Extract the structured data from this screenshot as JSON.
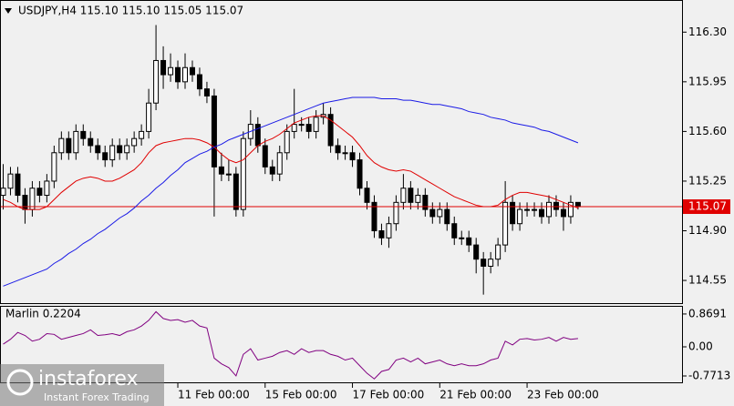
{
  "chart_data": [
    {
      "type": "candlestick",
      "title": "USDJPY,H4  115.10 115.10 115.05 115.07",
      "categories": [
        null,
        null,
        null,
        null,
        null,
        null,
        null,
        null,
        null,
        null,
        null,
        null,
        null,
        null,
        null,
        null,
        null,
        null,
        null,
        null,
        null,
        null,
        null,
        null,
        "11 Feb 00:00",
        null,
        null,
        null,
        null,
        null,
        null,
        null,
        null,
        null,
        null,
        null,
        "15 Feb 00:00",
        null,
        null,
        null,
        null,
        null,
        null,
        null,
        null,
        null,
        null,
        null,
        "17 Feb 00:00",
        null,
        null,
        null,
        null,
        null,
        null,
        null,
        null,
        null,
        null,
        null,
        "21 Feb 00:00",
        null,
        null,
        null,
        null,
        null,
        null,
        null,
        null,
        null,
        null,
        null,
        "23 Feb 00:00",
        null,
        null,
        null,
        null,
        null,
        null,
        null
      ],
      "open": [
        115.15,
        115.2,
        115.3,
        115.15,
        115.05,
        115.2,
        115.15,
        115.25,
        115.45,
        115.55,
        115.45,
        115.6,
        115.55,
        115.5,
        115.45,
        115.4,
        115.5,
        115.45,
        115.5,
        115.55,
        115.6,
        115.8,
        116.1,
        116.0,
        116.05,
        115.95,
        116.05,
        116.0,
        115.9,
        115.85,
        115.35,
        115.3,
        115.3,
        115.05,
        115.55,
        115.65,
        115.5,
        115.35,
        115.3,
        115.45,
        115.6,
        115.65,
        115.65,
        115.6,
        115.7,
        115.72,
        115.5,
        115.45,
        115.45,
        115.4,
        115.2,
        115.1,
        114.9,
        114.85,
        114.95,
        115.1,
        115.2,
        115.1,
        115.15,
        115.05,
        115.0,
        115.05,
        114.95,
        114.85,
        114.85,
        114.8,
        114.7,
        114.65,
        114.7,
        114.8,
        115.1,
        114.95,
        115.05,
        115.05,
        115.05,
        115.0,
        115.1,
        115.05,
        115.0,
        115.1
      ],
      "high": [
        115.37,
        115.35,
        115.35,
        115.2,
        115.25,
        115.25,
        115.3,
        115.5,
        115.6,
        115.6,
        115.65,
        115.65,
        115.6,
        115.55,
        115.5,
        115.55,
        115.55,
        115.55,
        115.6,
        115.65,
        115.9,
        116.35,
        116.2,
        116.15,
        116.1,
        116.15,
        116.1,
        116.05,
        115.95,
        115.9,
        115.45,
        115.4,
        115.35,
        115.6,
        115.75,
        115.7,
        115.55,
        115.4,
        115.5,
        115.65,
        115.9,
        115.7,
        115.7,
        115.75,
        115.8,
        115.77,
        115.55,
        115.5,
        115.5,
        115.45,
        115.25,
        115.15,
        114.95,
        115.0,
        115.15,
        115.3,
        115.25,
        115.2,
        115.2,
        115.1,
        115.1,
        115.1,
        115.0,
        114.9,
        114.9,
        114.85,
        114.75,
        114.75,
        114.85,
        115.25,
        115.15,
        115.1,
        115.1,
        115.1,
        115.1,
        115.15,
        115.15,
        115.1,
        115.15,
        115.1
      ],
      "low": [
        115.05,
        115.15,
        115.1,
        114.95,
        115.0,
        115.1,
        115.1,
        115.2,
        115.4,
        115.4,
        115.4,
        115.5,
        115.45,
        115.4,
        115.35,
        115.35,
        115.4,
        115.4,
        115.45,
        115.5,
        115.55,
        115.75,
        115.9,
        115.95,
        115.9,
        115.9,
        115.95,
        115.85,
        115.8,
        115.0,
        115.25,
        115.25,
        115.0,
        115.0,
        115.5,
        115.45,
        115.3,
        115.25,
        115.25,
        115.4,
        115.55,
        115.6,
        115.55,
        115.55,
        115.65,
        115.45,
        115.4,
        115.4,
        115.35,
        115.15,
        115.05,
        114.85,
        114.8,
        114.78,
        114.9,
        115.05,
        115.05,
        115.05,
        115.0,
        114.95,
        114.95,
        114.9,
        114.8,
        114.8,
        114.75,
        114.6,
        114.45,
        114.6,
        114.65,
        114.75,
        114.9,
        114.9,
        115.0,
        115.0,
        114.95,
        114.95,
        115.0,
        114.9,
        114.95,
        115.05
      ],
      "close": [
        115.2,
        115.3,
        115.15,
        115.05,
        115.2,
        115.15,
        115.25,
        115.45,
        115.55,
        115.45,
        115.6,
        115.55,
        115.5,
        115.45,
        115.4,
        115.5,
        115.45,
        115.5,
        115.55,
        115.6,
        115.8,
        116.1,
        116.0,
        116.05,
        115.95,
        116.05,
        116.0,
        115.9,
        115.85,
        115.35,
        115.3,
        115.3,
        115.05,
        115.55,
        115.65,
        115.5,
        115.35,
        115.3,
        115.45,
        115.6,
        115.65,
        115.65,
        115.6,
        115.7,
        115.72,
        115.5,
        115.45,
        115.45,
        115.4,
        115.2,
        115.1,
        114.9,
        114.85,
        114.95,
        115.1,
        115.2,
        115.1,
        115.15,
        115.05,
        115.0,
        115.05,
        114.95,
        114.85,
        114.85,
        114.8,
        114.7,
        114.65,
        114.7,
        114.8,
        115.1,
        114.95,
        115.05,
        115.05,
        115.05,
        115.0,
        115.1,
        115.05,
        115.0,
        115.1,
        115.07
      ],
      "series": [
        {
          "color": "#e00000",
          "values": [
            115.12,
            115.1,
            115.07,
            115.05,
            115.05,
            115.05,
            115.07,
            115.12,
            115.17,
            115.21,
            115.25,
            115.27,
            115.28,
            115.27,
            115.25,
            115.25,
            115.27,
            115.3,
            115.33,
            115.38,
            115.45,
            115.5,
            115.52,
            115.53,
            115.54,
            115.55,
            115.55,
            115.54,
            115.52,
            115.49,
            115.44,
            115.4,
            115.38,
            115.4,
            115.45,
            115.5,
            115.53,
            115.55,
            115.58,
            115.62,
            115.66,
            115.68,
            115.7,
            115.71,
            115.71,
            115.68,
            115.64,
            115.6,
            115.56,
            115.5,
            115.43,
            115.38,
            115.35,
            115.33,
            115.32,
            115.33,
            115.32,
            115.29,
            115.26,
            115.23,
            115.2,
            115.17,
            115.14,
            115.12,
            115.1,
            115.08,
            115.07,
            115.07,
            115.08,
            115.12,
            115.15,
            115.17,
            115.17,
            115.16,
            115.15,
            115.14,
            115.12,
            115.1,
            115.08,
            115.06
          ]
        },
        {
          "color": "#1a1ae6",
          "values": [
            114.51,
            114.53,
            114.55,
            114.57,
            114.59,
            114.61,
            114.63,
            114.67,
            114.7,
            114.74,
            114.77,
            114.81,
            114.84,
            114.88,
            114.91,
            114.95,
            114.99,
            115.02,
            115.06,
            115.11,
            115.15,
            115.2,
            115.24,
            115.29,
            115.33,
            115.38,
            115.41,
            115.44,
            115.46,
            115.49,
            115.51,
            115.54,
            115.56,
            115.58,
            115.6,
            115.62,
            115.64,
            115.66,
            115.68,
            115.7,
            115.72,
            115.74,
            115.76,
            115.78,
            115.8,
            115.81,
            115.82,
            115.83,
            115.84,
            115.84,
            115.84,
            115.84,
            115.83,
            115.83,
            115.83,
            115.82,
            115.82,
            115.81,
            115.8,
            115.79,
            115.79,
            115.78,
            115.77,
            115.76,
            115.74,
            115.73,
            115.72,
            115.7,
            115.69,
            115.68,
            115.66,
            115.65,
            115.64,
            115.63,
            115.61,
            115.6,
            115.58,
            115.56,
            115.54,
            115.52
          ]
        }
      ],
      "last_price_color": "#e00000",
      "ylim": [
        114.39,
        116.52
      ],
      "yticks": [
        {
          "value": 116.3,
          "label": "116.30"
        },
        115.95,
        {
          "value": 115.6,
          "label": "115.60"
        },
        115.25,
        {
          "value": 114.9,
          "label": "114.90"
        },
        114.55
      ]
    },
    {
      "type": "line",
      "title": "Marlin 0.2204",
      "series": [
        {
          "color": "#800080",
          "values": [
            0.07,
            0.2,
            0.38,
            0.3,
            0.15,
            0.2,
            0.35,
            0.33,
            0.2,
            0.25,
            0.3,
            0.35,
            0.45,
            0.3,
            0.32,
            0.35,
            0.3,
            0.4,
            0.45,
            0.55,
            0.7,
            0.93,
            0.75,
            0.7,
            0.72,
            0.65,
            0.7,
            0.55,
            0.5,
            -0.3,
            -0.45,
            -0.55,
            -0.77,
            -0.2,
            -0.05,
            -0.35,
            -0.3,
            -0.25,
            -0.15,
            -0.1,
            -0.2,
            -0.05,
            -0.15,
            -0.1,
            -0.1,
            -0.2,
            -0.25,
            -0.35,
            -0.3,
            -0.5,
            -0.7,
            -0.85,
            -0.65,
            -0.6,
            -0.35,
            -0.3,
            -0.4,
            -0.3,
            -0.45,
            -0.4,
            -0.35,
            -0.45,
            -0.5,
            -0.45,
            -0.5,
            -0.5,
            -0.45,
            -0.35,
            -0.3,
            0.15,
            0.05,
            0.2,
            0.22,
            0.18,
            0.2,
            0.25,
            0.15,
            0.25,
            0.2,
            0.22
          ]
        }
      ],
      "ylim": [
        -0.94,
        1.06
      ],
      "yticks": [
        0.8691,
        {
          "value": 0,
          "label": "0.00"
        },
        -0.7713
      ]
    }
  ],
  "watermark": {
    "brand": "instaforex",
    "tagline": "Instant Forex Trading"
  }
}
